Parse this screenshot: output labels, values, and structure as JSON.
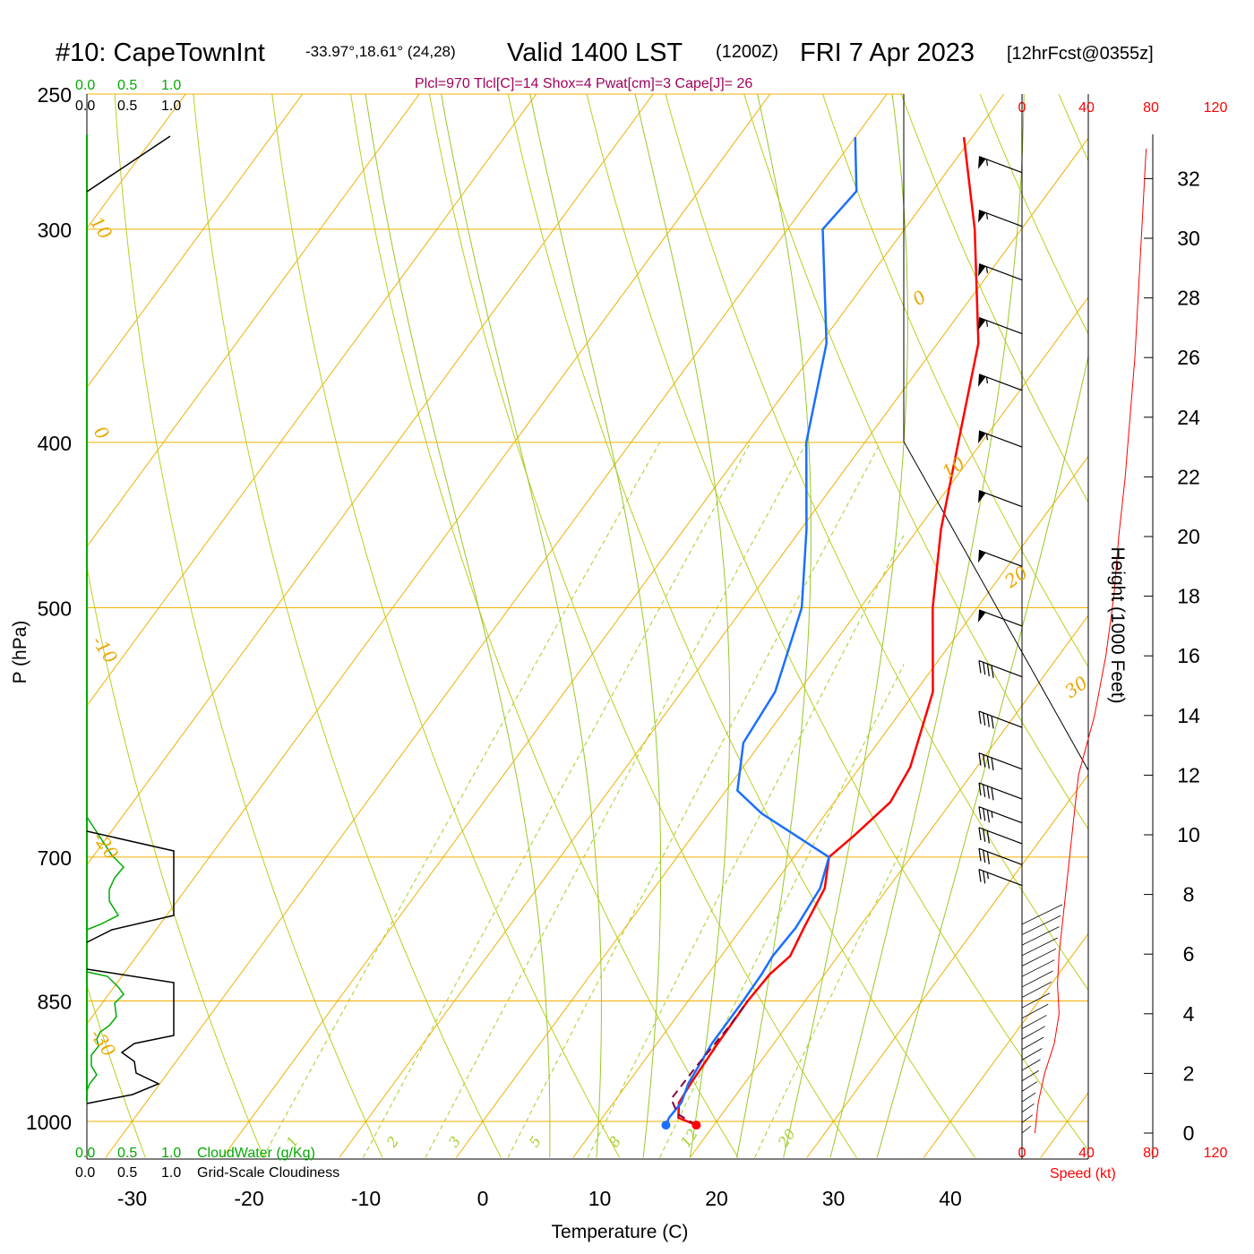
{
  "header": {
    "station": "#10: CapeTownInt",
    "coords": "-33.97°,18.61° (24,28)",
    "valid": "Valid 1400 LST",
    "zulu": "(1200Z)",
    "date": "FRI 7 Apr 2023",
    "forecast": "[12hrFcst@0355z]"
  },
  "indices": "Plcl=970 Tlcl[C]=14 Shox=4 Pwat[cm]=3 Cape[J]= 26",
  "colors": {
    "temperature": "#ff0000",
    "dewpoint": "#1a6fff",
    "isotherm": "#f0b000",
    "dry_adiabat": "#b8d020",
    "mixing_ratio": "#a0d020",
    "cloud_water": "#00aa00",
    "cloudiness": "#000000",
    "parcel": "#800040",
    "speed": "#ff0000"
  },
  "chart_data": {
    "type": "line",
    "skew_t": true,
    "y_scale": "log-pressure",
    "ylim_hPa": [
      1050,
      250
    ],
    "xlim_C": [
      -34,
      46
    ],
    "pressure_ticks": [
      "250",
      "300",
      "400",
      "500",
      "700",
      "850",
      "1000"
    ],
    "pressure_values": [
      250,
      300,
      400,
      500,
      700,
      850,
      1000
    ],
    "temp_ticks": [
      "-30",
      "-20",
      "-10",
      "0",
      "10",
      "20",
      "30",
      "40"
    ],
    "temp_values": [
      -30,
      -20,
      -10,
      0,
      10,
      20,
      30,
      40
    ],
    "xlabel": "Temperature (C)",
    "ylabel": "P (hPa)",
    "series": [
      {
        "key": "temperature",
        "points": [
          [
            1005,
            18.5
          ],
          [
            995,
            16.5
          ],
          [
            975,
            15.6
          ],
          [
            950,
            15.4
          ],
          [
            900,
            15.2
          ],
          [
            850,
            15.1
          ],
          [
            820,
            15.3
          ],
          [
            800,
            15.9
          ],
          [
            770,
            15.3
          ],
          [
            730,
            14.6
          ],
          [
            700,
            13.0
          ],
          [
            680,
            13.8
          ],
          [
            650,
            14.8
          ],
          [
            620,
            14.3
          ],
          [
            560,
            11.5
          ],
          [
            500,
            6.2
          ],
          [
            450,
            2.0
          ],
          [
            400,
            -2.0
          ],
          [
            350,
            -6.5
          ],
          [
            300,
            -14.0
          ],
          [
            265,
            -20.7
          ]
        ]
      },
      {
        "key": "dewpoint",
        "points": [
          [
            1005,
            15.9
          ],
          [
            995,
            15.7
          ],
          [
            975,
            15.8
          ],
          [
            950,
            15.2
          ],
          [
            900,
            14.7
          ],
          [
            850,
            14.7
          ],
          [
            820,
            14.6
          ],
          [
            800,
            14.4
          ],
          [
            770,
            14.6
          ],
          [
            730,
            14.2
          ],
          [
            700,
            13.0
          ],
          [
            660,
            4.5
          ],
          [
            640,
            1.0
          ],
          [
            600,
            -1.5
          ],
          [
            560,
            -2.0
          ],
          [
            500,
            -5.0
          ],
          [
            450,
            -9.5
          ],
          [
            400,
            -15.0
          ],
          [
            350,
            -19.5
          ],
          [
            300,
            -27.0
          ],
          [
            285,
            -26.5
          ],
          [
            265,
            -30.0
          ]
        ]
      },
      {
        "key": "parcel",
        "points": [
          [
            1005,
            18.5
          ],
          [
            990,
            16.2
          ],
          [
            970,
            14.7
          ],
          [
            930,
            14.8
          ],
          [
            880,
            15.1
          ],
          [
            850,
            15.1
          ]
        ]
      }
    ],
    "dry_adiabat_labels": [
      "0",
      "10",
      "20",
      "30"
    ],
    "dry_adiabat_values": [
      0,
      10,
      20,
      30
    ],
    "dry_adiabat_left_labels": [
      "10",
      "0",
      "-10",
      "-20",
      "-30"
    ],
    "mixing_ratio_labels": [
      "1",
      "2",
      "3",
      "5",
      "8",
      "12",
      "20"
    ],
    "mixing_ratio_values": [
      1,
      2,
      3,
      5,
      8,
      12,
      20
    ],
    "cloud_water_label": "CloudWater (g/Kg)",
    "cloudiness_label": "Grid-Scale Cloudiness",
    "cloud_scale_ticks": [
      "0.0",
      "0.5",
      "1.0"
    ],
    "height_axis_label": "Height (1000 Feet)",
    "height_ticks": [
      "0",
      "2",
      "4",
      "6",
      "8",
      "10",
      "12",
      "14",
      "16",
      "18",
      "20",
      "22",
      "24",
      "26",
      "28",
      "30",
      "32"
    ],
    "height_values_kft": [
      0,
      2,
      4,
      6,
      8,
      10,
      12,
      14,
      16,
      18,
      20,
      22,
      24,
      26,
      28,
      30,
      32
    ],
    "speed_label": "Speed (kt)",
    "speed_ticks": [
      "0",
      "40",
      "80",
      "120"
    ],
    "speed_values_kt": [
      0,
      40,
      80,
      120
    ],
    "wind_profile": [
      [
        0,
        8
      ],
      [
        1,
        10
      ],
      [
        2,
        14
      ],
      [
        3,
        20
      ],
      [
        4,
        23
      ],
      [
        5,
        22
      ],
      [
        6,
        23
      ],
      [
        7,
        25
      ],
      [
        8,
        27
      ],
      [
        9,
        29
      ],
      [
        10,
        31
      ],
      [
        11,
        33
      ],
      [
        12,
        35
      ],
      [
        13,
        40
      ],
      [
        14,
        45
      ],
      [
        16,
        52
      ],
      [
        18,
        57
      ],
      [
        20,
        60
      ],
      [
        22,
        64
      ],
      [
        24,
        67
      ],
      [
        26,
        70
      ],
      [
        28,
        72
      ],
      [
        30,
        74
      ],
      [
        32,
        76
      ],
      [
        33,
        77
      ]
    ],
    "wind_barbs": [
      {
        "kft": 32.2,
        "kt": 55
      },
      {
        "kft": 30.4,
        "kt": 55
      },
      {
        "kft": 28.6,
        "kt": 55
      },
      {
        "kft": 26.8,
        "kt": 55
      },
      {
        "kft": 24.9,
        "kt": 55
      },
      {
        "kft": 23.0,
        "kt": 55
      },
      {
        "kft": 21.0,
        "kt": 50
      },
      {
        "kft": 19.0,
        "kt": 50
      },
      {
        "kft": 17.0,
        "kt": 50
      },
      {
        "kft": 15.3,
        "kt": 40
      },
      {
        "kft": 13.6,
        "kt": 40
      },
      {
        "kft": 12.2,
        "kt": 40
      },
      {
        "kft": 11.2,
        "kt": 40
      },
      {
        "kft": 10.4,
        "kt": 35
      },
      {
        "kft": 9.7,
        "kt": 30
      },
      {
        "kft": 9.0,
        "kt": 30
      },
      {
        "kft": 8.3,
        "kt": 25
      }
    ]
  }
}
